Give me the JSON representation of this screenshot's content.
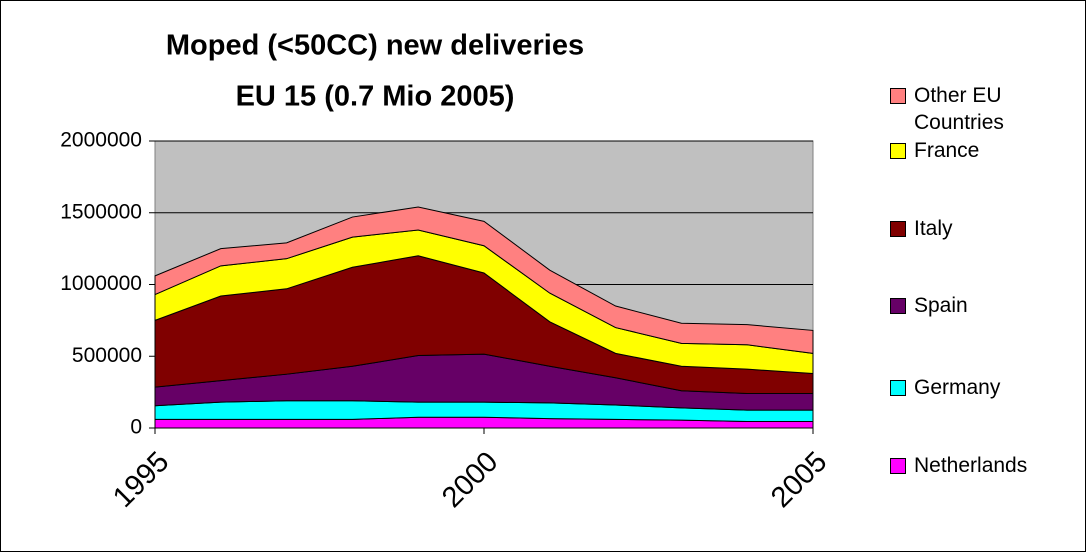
{
  "chart_data": {
    "type": "stacked_area",
    "title": "Moped (<50CC) new deliveries",
    "subtitle": "EU 15 (0.7 Mio 2005)",
    "x": [
      1995,
      1996,
      1997,
      1998,
      1999,
      2000,
      2001,
      2002,
      2003,
      2004,
      2005
    ],
    "xlim": [
      1995,
      2005
    ],
    "xticks": [
      1995,
      2000,
      2005
    ],
    "ylim": [
      0,
      2000000
    ],
    "yticks": [
      0,
      500000,
      1000000,
      1500000,
      2000000
    ],
    "grid": true,
    "legend": "right",
    "series": [
      {
        "name": "Netherlands",
        "color": "#ff00ff",
        "values": [
          60000,
          60000,
          60000,
          60000,
          75000,
          75000,
          65000,
          60000,
          55000,
          45000,
          45000
        ]
      },
      {
        "name": "Germany",
        "color": "#00ffff",
        "values": [
          95000,
          120000,
          130000,
          130000,
          105000,
          105000,
          110000,
          100000,
          85000,
          80000,
          80000
        ]
      },
      {
        "name": "Spain",
        "color": "#660066",
        "values": [
          130000,
          150000,
          185000,
          240000,
          325000,
          335000,
          255000,
          190000,
          120000,
          115000,
          115000
        ]
      },
      {
        "name": "Italy",
        "color": "#800000",
        "values": [
          465000,
          590000,
          595000,
          690000,
          695000,
          565000,
          310000,
          170000,
          170000,
          170000,
          140000
        ]
      },
      {
        "name": "France",
        "color": "#ffff00",
        "values": [
          180000,
          210000,
          210000,
          210000,
          180000,
          190000,
          200000,
          180000,
          160000,
          170000,
          140000
        ]
      },
      {
        "name": "Other EU Countries",
        "color": "#ff8080",
        "values": [
          130000,
          120000,
          110000,
          140000,
          160000,
          170000,
          160000,
          150000,
          140000,
          140000,
          160000
        ]
      }
    ]
  }
}
